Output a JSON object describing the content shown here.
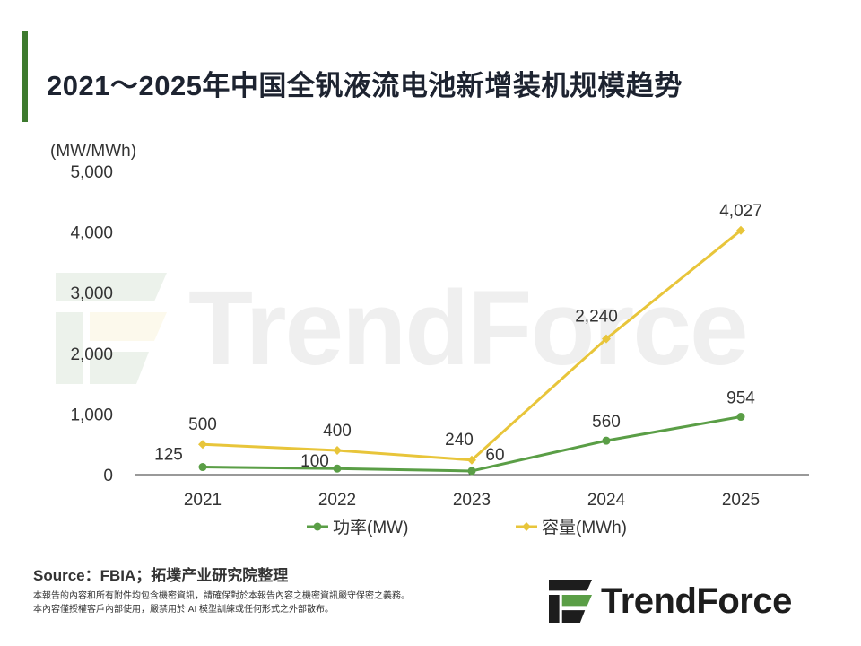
{
  "title": "2021～2025年中国全钒液流电池新增装机规模趋势",
  "source": "Source：FBIA；拓墣产业研究院整理",
  "disclaimer": [
    "本報告的內容和所有附件均包含機密資訊，請確保對於本報告內容之機密資訊嚴守保密之義務。",
    "本內容僅授權客戶內部使用，嚴禁用於 AI 模型訓練或任何形式之外部散布。"
  ],
  "brand": {
    "name": "TrendForce",
    "watermark": "TrendForce"
  },
  "colors": {
    "accent_bar": "#3d7a2e",
    "power": "#5a9e46",
    "capacity": "#e8c53a"
  },
  "chart_data": {
    "type": "line",
    "title": "2021～2025年中国全钒液流电池新增装机规模趋势",
    "ylabel": "(MW/MWh)",
    "xlabel": "",
    "categories": [
      "2021",
      "2022",
      "2023",
      "2024",
      "2025"
    ],
    "ylim": [
      0,
      5000
    ],
    "yticks": [
      "0",
      "1,000",
      "2,000",
      "3,000",
      "4,000",
      "5,000"
    ],
    "grid": false,
    "legend_position": "bottom",
    "series": [
      {
        "name": "功率(MW)",
        "values": [
          125,
          100,
          60,
          560,
          954
        ],
        "labels": [
          "125",
          "100",
          "60",
          "560",
          "954"
        ],
        "color": "#5a9e46",
        "marker": "circle"
      },
      {
        "name": "容量(MWh)",
        "values": [
          500,
          400,
          240,
          2240,
          4027
        ],
        "labels": [
          "500",
          "400",
          "240",
          "2,240",
          "4,027"
        ],
        "color": "#e8c53a",
        "marker": "diamond"
      }
    ]
  }
}
